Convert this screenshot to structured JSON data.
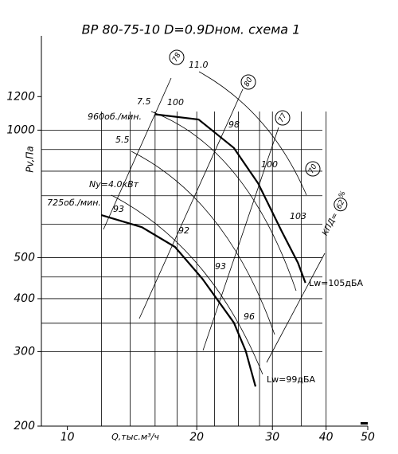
{
  "chart_data": {
    "type": "line",
    "title": "ВР 80-75-10 D=0.9Dном. схема 1",
    "y_label": "Pv,Па",
    "x_label": "Q,тыс.м³/ч",
    "log_x": true,
    "log_y": true,
    "xlim": [
      8.7,
      50
    ],
    "ylim": [
      200,
      1670
    ],
    "xticks": [
      10,
      20,
      30,
      40,
      50
    ],
    "yticks": [
      200,
      300,
      400,
      500,
      1000,
      1200
    ],
    "xgrid": [
      12,
      14,
      16,
      18,
      20,
      22,
      25,
      28,
      30,
      35,
      40
    ],
    "ygrid": [
      300,
      350,
      400,
      450,
      500,
      600,
      700,
      800,
      900,
      1000
    ],
    "series": [
      {
        "name": "960об./мин.",
        "color": "#000000",
        "x": [
          16.0,
          20.2,
          24.4,
          27.8,
          31.5,
          34.4,
          35.8
        ],
        "values": [
          1090,
          1060,
          908,
          748,
          578,
          486,
          436
        ]
      },
      {
        "name": "725об./мин.",
        "color": "#000000",
        "x": [
          12.0,
          14.9,
          17.8,
          20.6,
          24.4,
          26.0,
          27.4
        ],
        "values": [
          630,
          590,
          530,
          446,
          351,
          301,
          248
        ]
      }
    ],
    "power_labels": [
      "11.0",
      "7.5",
      "5.5",
      "Ny=4.0кВт"
    ],
    "efficiency_labels": [
      "100",
      "98",
      "100",
      "103",
      "93",
      "92",
      "93",
      "96"
    ],
    "ray_labels": [
      "78",
      "80",
      "77",
      "70"
    ],
    "noise_labels": [
      "Lw=105дБА",
      "Lw=99дБА"
    ],
    "kpd": {
      "label": "КПД=",
      "value": "62",
      "unit": "%"
    }
  }
}
